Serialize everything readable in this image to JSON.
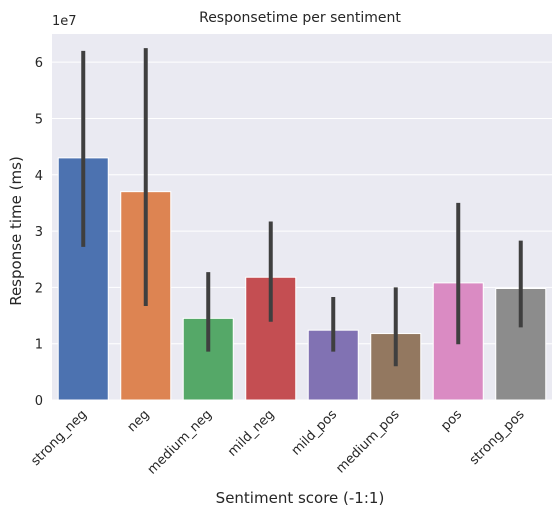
{
  "chart_data": {
    "type": "bar",
    "title": "Responsetime per sentiment",
    "xlabel": "Sentiment score (-1:1)",
    "ylabel": "Response time (ms)",
    "y_multiplier_label": "1e7",
    "y_multiplier": 10000000,
    "ylim": [
      0,
      6.5
    ],
    "yticks": [
      0,
      1,
      2,
      3,
      4,
      5,
      6
    ],
    "grid": true,
    "legend": "none",
    "categories": [
      "strong_neg",
      "neg",
      "medium_neg",
      "mild_neg",
      "mild_pos",
      "medium_pos",
      "pos",
      "strong_pos"
    ],
    "values": [
      4.3,
      3.7,
      1.45,
      2.18,
      1.24,
      1.18,
      2.08,
      1.98
    ],
    "error_low": [
      2.72,
      1.67,
      0.86,
      1.39,
      0.86,
      0.6,
      0.99,
      1.29
    ],
    "error_high": [
      6.2,
      6.25,
      2.27,
      3.17,
      1.83,
      2.0,
      3.5,
      2.83
    ],
    "colors": [
      "#4c72b0",
      "#dd8452",
      "#55a868",
      "#c44e52",
      "#8172b3",
      "#937860",
      "#da8bc3",
      "#8c8c8c"
    ],
    "error_color": "#3f3f3f",
    "background": "#eaeaf2"
  }
}
